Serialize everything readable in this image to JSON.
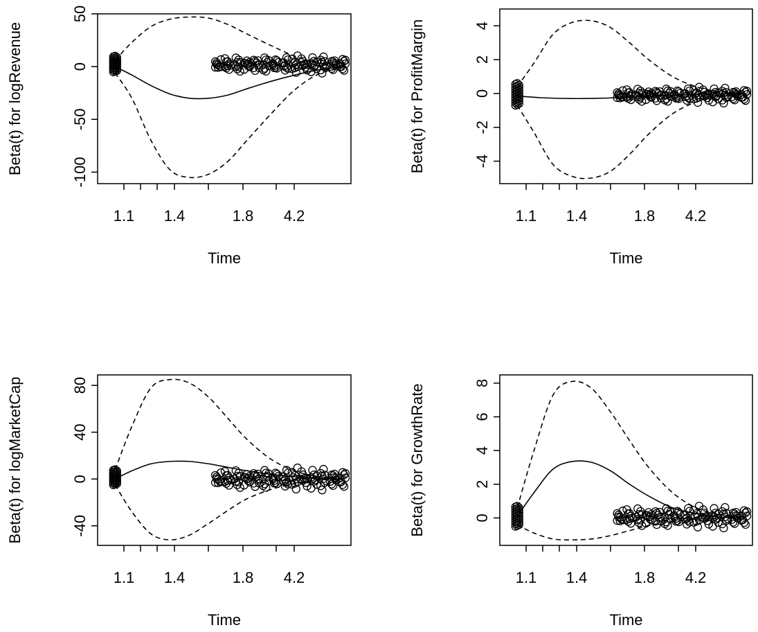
{
  "chart_data": [
    {
      "type": "line",
      "xlabel": "Time",
      "ylabel": "Beta(t) for logRevenue",
      "ylim": [
        -105,
        50
      ],
      "yticks": [
        50,
        0,
        -50,
        -100
      ],
      "xtick_labels": [
        "1.1",
        "1.4",
        "1.8",
        "4.2"
      ],
      "series": [
        {
          "role": "estimate",
          "style": "solid",
          "points": [
            [
              0.05,
              0
            ],
            [
              0.12,
              -8
            ],
            [
              0.2,
              -18
            ],
            [
              0.28,
              -26
            ],
            [
              0.36,
              -30
            ],
            [
              0.44,
              -30
            ],
            [
              0.52,
              -27
            ],
            [
              0.6,
              -21
            ],
            [
              0.7,
              -14
            ],
            [
              0.8,
              -8
            ],
            [
              0.9,
              -3
            ],
            [
              1.0,
              0
            ]
          ]
        },
        {
          "role": "upper-band",
          "style": "dashed",
          "points": [
            [
              0.05,
              6
            ],
            [
              0.12,
              23
            ],
            [
              0.2,
              38
            ],
            [
              0.28,
              45
            ],
            [
              0.36,
              47
            ],
            [
              0.44,
              46
            ],
            [
              0.52,
              40
            ],
            [
              0.6,
              31
            ],
            [
              0.7,
              20
            ],
            [
              0.8,
              10
            ],
            [
              0.9,
              3
            ],
            [
              1.0,
              1
            ]
          ]
        },
        {
          "role": "lower-band",
          "style": "dashed",
          "points": [
            [
              0.05,
              -6
            ],
            [
              0.12,
              -30
            ],
            [
              0.2,
              -70
            ],
            [
              0.28,
              -98
            ],
            [
              0.36,
              -105
            ],
            [
              0.44,
              -102
            ],
            [
              0.52,
              -90
            ],
            [
              0.6,
              -70
            ],
            [
              0.7,
              -45
            ],
            [
              0.8,
              -22
            ],
            [
              0.9,
              -7
            ],
            [
              1.0,
              -1
            ]
          ]
        }
      ],
      "residual_clusters": [
        {
          "x": [
            0.05
          ],
          "spread": [
            -5,
            10
          ]
        },
        {
          "x": [
            0.48,
            0.52,
            0.56,
            0.6,
            0.64,
            0.68,
            0.72,
            0.76,
            0.8,
            0.84,
            0.88,
            0.92,
            0.96,
            1.0
          ],
          "spread": [
            -5,
            9
          ]
        }
      ]
    },
    {
      "type": "line",
      "xlabel": "Time",
      "ylabel": "Beta(t) for ProfitMargin",
      "ylim": [
        -5,
        4.5
      ],
      "yticks": [
        4,
        2,
        0,
        -2,
        -4
      ],
      "xtick_labels": [
        "1.1",
        "1.4",
        "1.8",
        "4.2"
      ],
      "series": [
        {
          "role": "estimate",
          "style": "solid",
          "points": [
            [
              0.05,
              -0.15
            ],
            [
              0.15,
              -0.25
            ],
            [
              0.28,
              -0.3
            ],
            [
              0.4,
              -0.28
            ],
            [
              0.55,
              -0.2
            ],
            [
              0.7,
              -0.1
            ],
            [
              0.85,
              -0.03
            ],
            [
              1.0,
              0
            ]
          ]
        },
        {
          "role": "upper-band",
          "style": "dashed",
          "points": [
            [
              0.05,
              0.4
            ],
            [
              0.12,
              1.8
            ],
            [
              0.2,
              3.5
            ],
            [
              0.28,
              4.2
            ],
            [
              0.36,
              4.3
            ],
            [
              0.44,
              3.9
            ],
            [
              0.52,
              3.0
            ],
            [
              0.6,
              2.0
            ],
            [
              0.7,
              1.0
            ],
            [
              0.8,
              0.4
            ],
            [
              0.9,
              0.1
            ],
            [
              1.0,
              0.05
            ]
          ]
        },
        {
          "role": "lower-band",
          "style": "dashed",
          "points": [
            [
              0.05,
              -0.7
            ],
            [
              0.12,
              -2.3
            ],
            [
              0.2,
              -4.2
            ],
            [
              0.28,
              -4.9
            ],
            [
              0.36,
              -5.0
            ],
            [
              0.44,
              -4.6
            ],
            [
              0.52,
              -3.6
            ],
            [
              0.6,
              -2.4
            ],
            [
              0.7,
              -1.2
            ],
            [
              0.8,
              -0.5
            ],
            [
              0.9,
              -0.15
            ],
            [
              1.0,
              -0.05
            ]
          ]
        }
      ],
      "residual_clusters": [
        {
          "x": [
            0.05
          ],
          "spread": [
            -0.7,
            0.6
          ]
        },
        {
          "x": [
            0.48,
            0.52,
            0.56,
            0.6,
            0.64,
            0.68,
            0.72,
            0.76,
            0.8,
            0.84,
            0.88,
            0.92,
            0.96,
            1.0
          ],
          "spread": [
            -0.5,
            0.3
          ]
        }
      ]
    },
    {
      "type": "line",
      "xlabel": "Time",
      "ylabel": "Beta(t) for logMarketCap",
      "ylim": [
        -52,
        86
      ],
      "yticks": [
        80,
        40,
        0,
        -40
      ],
      "xtick_labels": [
        "1.1",
        "1.4",
        "1.8",
        "4.2"
      ],
      "series": [
        {
          "role": "estimate",
          "style": "solid",
          "points": [
            [
              0.05,
              0
            ],
            [
              0.12,
              7
            ],
            [
              0.2,
              13
            ],
            [
              0.28,
              15
            ],
            [
              0.36,
              15
            ],
            [
              0.44,
              13
            ],
            [
              0.52,
              10
            ],
            [
              0.6,
              7
            ],
            [
              0.7,
              4
            ],
            [
              0.8,
              2
            ],
            [
              0.9,
              0.5
            ],
            [
              1.0,
              0
            ]
          ]
        },
        {
          "role": "upper-band",
          "style": "dashed",
          "points": [
            [
              0.05,
              8
            ],
            [
              0.12,
              45
            ],
            [
              0.2,
              78
            ],
            [
              0.28,
              85
            ],
            [
              0.36,
              82
            ],
            [
              0.44,
              70
            ],
            [
              0.52,
              52
            ],
            [
              0.6,
              34
            ],
            [
              0.7,
              17
            ],
            [
              0.8,
              7
            ],
            [
              0.9,
              2
            ],
            [
              1.0,
              1
            ]
          ]
        },
        {
          "role": "lower-band",
          "style": "dashed",
          "points": [
            [
              0.05,
              -5
            ],
            [
              0.12,
              -28
            ],
            [
              0.2,
              -47
            ],
            [
              0.28,
              -52
            ],
            [
              0.36,
              -48
            ],
            [
              0.44,
              -38
            ],
            [
              0.52,
              -27
            ],
            [
              0.6,
              -17
            ],
            [
              0.7,
              -9
            ],
            [
              0.8,
              -4
            ],
            [
              0.9,
              -1
            ],
            [
              1.0,
              -0.5
            ]
          ]
        }
      ],
      "residual_clusters": [
        {
          "x": [
            0.05
          ],
          "spread": [
            -5,
            8
          ]
        },
        {
          "x": [
            0.48,
            0.52,
            0.56,
            0.6,
            0.64,
            0.68,
            0.72,
            0.76,
            0.8,
            0.84,
            0.88,
            0.92,
            0.96,
            1.0
          ],
          "spread": [
            -8,
            8
          ]
        }
      ]
    },
    {
      "type": "line",
      "xlabel": "Time",
      "ylabel": "Beta(t) for GrowthRate",
      "ylim": [
        -1.3,
        8.2
      ],
      "yticks": [
        8,
        6,
        4,
        2,
        0
      ],
      "xtick_labels": [
        "1.1",
        "1.4",
        "1.8",
        "4.2"
      ],
      "series": [
        {
          "role": "estimate",
          "style": "solid",
          "points": [
            [
              0.05,
              0.1
            ],
            [
              0.12,
              1.5
            ],
            [
              0.2,
              2.9
            ],
            [
              0.28,
              3.35
            ],
            [
              0.36,
              3.3
            ],
            [
              0.44,
              2.8
            ],
            [
              0.52,
              2.0
            ],
            [
              0.6,
              1.3
            ],
            [
              0.7,
              0.6
            ],
            [
              0.8,
              0.25
            ],
            [
              0.9,
              0.05
            ],
            [
              1.0,
              0
            ]
          ]
        },
        {
          "role": "upper-band",
          "style": "dashed",
          "points": [
            [
              0.05,
              0.6
            ],
            [
              0.12,
              4.0
            ],
            [
              0.2,
              7.3
            ],
            [
              0.28,
              8.1
            ],
            [
              0.36,
              7.7
            ],
            [
              0.44,
              6.3
            ],
            [
              0.52,
              4.6
            ],
            [
              0.6,
              3.0
            ],
            [
              0.7,
              1.5
            ],
            [
              0.8,
              0.6
            ],
            [
              0.9,
              0.2
            ],
            [
              1.0,
              0.05
            ]
          ]
        },
        {
          "role": "lower-band",
          "style": "dashed",
          "points": [
            [
              0.05,
              -0.4
            ],
            [
              0.12,
              -0.9
            ],
            [
              0.2,
              -1.25
            ],
            [
              0.28,
              -1.3
            ],
            [
              0.36,
              -1.25
            ],
            [
              0.44,
              -1.05
            ],
            [
              0.52,
              -0.75
            ],
            [
              0.6,
              -0.45
            ],
            [
              0.7,
              -0.2
            ],
            [
              0.8,
              -0.08
            ],
            [
              0.9,
              -0.02
            ],
            [
              1.0,
              0
            ]
          ]
        }
      ],
      "residual_clusters": [
        {
          "x": [
            0.05
          ],
          "spread": [
            -0.5,
            0.7
          ]
        },
        {
          "x": [
            0.48,
            0.52,
            0.56,
            0.6,
            0.64,
            0.68,
            0.72,
            0.76,
            0.8,
            0.84,
            0.88,
            0.92,
            0.96,
            1.0
          ],
          "spread": [
            -0.5,
            0.6
          ]
        }
      ]
    }
  ]
}
